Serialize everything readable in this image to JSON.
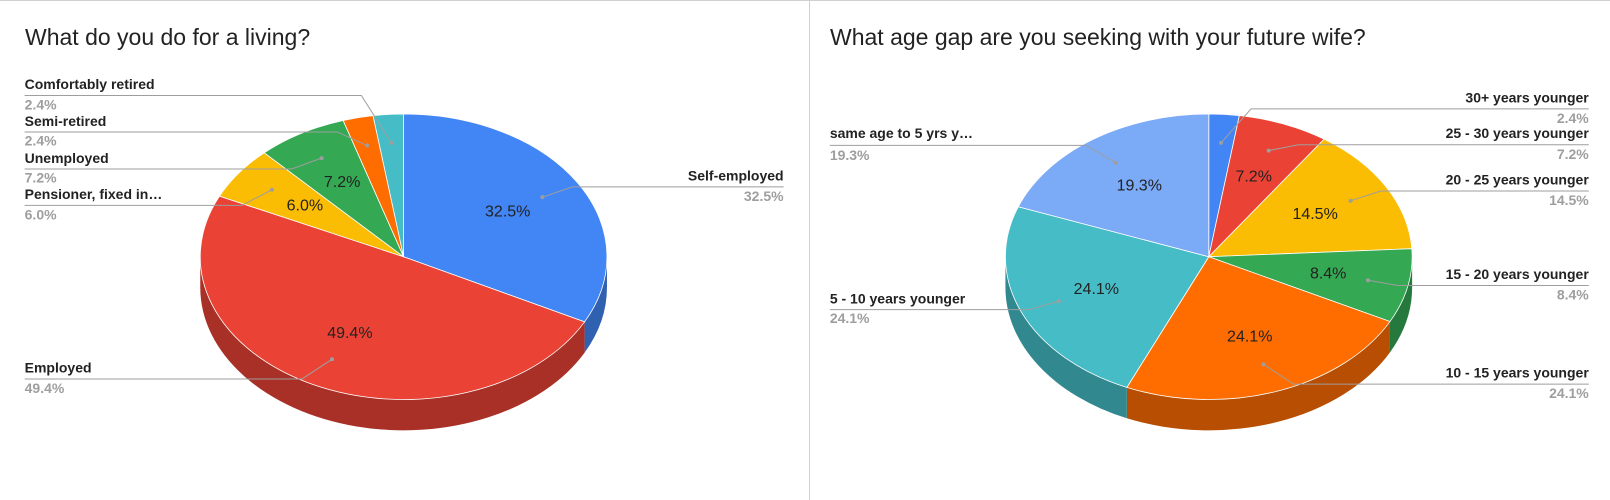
{
  "chart_data": [
    {
      "type": "pie",
      "title": "What do you do for a living?",
      "categories": [
        "Self-employed",
        "Employed",
        "Pensioner, fixed in…",
        "Unemployed",
        "Semi-retired",
        "Comfortably retired"
      ],
      "values": [
        32.5,
        49.4,
        6.0,
        7.2,
        2.4,
        2.4
      ],
      "value_labels": [
        "32.5%",
        "49.4%",
        "6.0%",
        "7.2%",
        "2.4%",
        "2.4%"
      ],
      "colors": [
        "#4285f4",
        "#ea4335",
        "#fbbc04",
        "#34a853",
        "#ff6d01",
        "#46bdc6"
      ]
    },
    {
      "type": "pie",
      "title": "What age gap are you seeking with your future wife?",
      "categories": [
        "30+ years younger",
        "25 - 30 years younger",
        "20 - 25 years younger",
        "15 - 20 years younger",
        "10 - 15 years younger",
        "5 - 10 years younger",
        "same age to 5 yrs y…"
      ],
      "values": [
        2.4,
        7.2,
        14.5,
        8.4,
        24.1,
        24.1,
        19.3
      ],
      "value_labels": [
        "2.4%",
        "7.2%",
        "14.5%",
        "8.4%",
        "24.1%",
        "24.1%",
        "19.3%"
      ],
      "colors": [
        "#4285f4",
        "#ea4335",
        "#fbbc04",
        "#34a853",
        "#ff6d01",
        "#46bdc6",
        "#7baaf7"
      ]
    }
  ]
}
